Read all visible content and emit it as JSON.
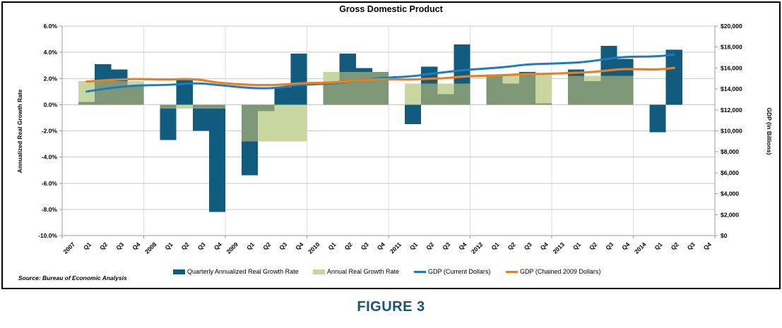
{
  "figure": {
    "title": "Gross Domestic Product",
    "caption": "FIGURE 3",
    "source": "Source: Bureau of Economic Analysis"
  },
  "chart_data": {
    "type": "combo (bar + line)",
    "title": "Gross Domestic Product",
    "grid": "horizontal gridlines every 2%, vertical separators at year boundaries",
    "legend_position": "bottom center",
    "x_axis": {
      "tick_labels": [
        "2007",
        "Q1",
        "Q2",
        "Q3",
        "Q4",
        "2008",
        "Q1",
        "Q2",
        "Q3",
        "Q4",
        "2009",
        "Q1",
        "Q2",
        "Q3",
        "Q4",
        "2010",
        "Q1",
        "Q2",
        "Q3",
        "Q4",
        "2011",
        "Q1",
        "Q2",
        "Q3",
        "Q4",
        "2012",
        "Q1",
        "Q2",
        "Q3",
        "Q4",
        "2013",
        "Q1",
        "Q2",
        "Q3",
        "Q4",
        "2014",
        "Q1",
        "Q2",
        "Q3",
        "Q4"
      ]
    },
    "left_axis": {
      "label": "Annualized Real Growth Rate",
      "min": -10,
      "max": 6,
      "tick_step": 2,
      "ticks": [
        "6.0%",
        "4.0%",
        "2.0%",
        "0.0%",
        "-2.0%",
        "-4.0%",
        "-6.0%",
        "-8.0%",
        "-10.0%"
      ]
    },
    "right_axis": {
      "label": "GDP (in Billions)",
      "min": 0,
      "max": 20000,
      "tick_step": 2000,
      "ticks": [
        "$20,000",
        "$18,000",
        "$16,000",
        "$14,000",
        "$12,000",
        "$10,000",
        "$8,000",
        "$6,000",
        "$4,000",
        "$2,000",
        "$0"
      ]
    },
    "years": [
      "2007",
      "2008",
      "2009",
      "2010",
      "2011",
      "2012",
      "2013",
      "2014"
    ],
    "series": [
      {
        "name": "Quarterly Annualized Real Growth Rate",
        "type": "bar",
        "unit": "percent",
        "color": "#115C7E",
        "values": [
          0.2,
          3.1,
          2.7,
          1.4,
          -2.7,
          2.0,
          -2.0,
          -8.2,
          -5.4,
          -0.5,
          1.3,
          3.9,
          1.6,
          3.9,
          2.8,
          2.5,
          -1.5,
          2.9,
          0.8,
          4.6,
          2.3,
          1.6,
          2.5,
          0.1,
          2.7,
          1.8,
          4.5,
          3.5,
          -2.1,
          4.2,
          null,
          null
        ]
      },
      {
        "name": "Annual Real Growth Rate",
        "type": "bar",
        "unit": "percent",
        "color": "#C8D6A0",
        "overlap_color": "#7E9877",
        "values": [
          1.8,
          -0.3,
          -2.8,
          2.5,
          1.6,
          2.3,
          2.2,
          null
        ]
      },
      {
        "name": "GDP (Current Dollars)",
        "type": "line",
        "unit": "billions of dollars",
        "color": "#1E7BBF",
        "values": [
          13750,
          14000,
          14180,
          14340,
          14380,
          14500,
          14550,
          14380,
          14090,
          14050,
          14150,
          14400,
          14500,
          14700,
          14850,
          15050,
          15200,
          15450,
          15600,
          15800,
          16000,
          16150,
          16350,
          16400,
          16500,
          16660,
          16900,
          17080,
          17100,
          17300
        ]
      },
      {
        "name": "GDP (Chained 2009 Dollars)",
        "type": "line",
        "unit": "billions of dollars",
        "color": "#E8801F",
        "values": [
          14700,
          14810,
          14900,
          14960,
          14890,
          14960,
          14890,
          14580,
          14380,
          14360,
          14400,
          14540,
          14600,
          14740,
          14840,
          14940,
          14880,
          14990,
          15020,
          15190,
          15280,
          15340,
          15430,
          15430,
          15540,
          15610,
          15780,
          15920,
          15830,
          16010
        ]
      }
    ]
  }
}
